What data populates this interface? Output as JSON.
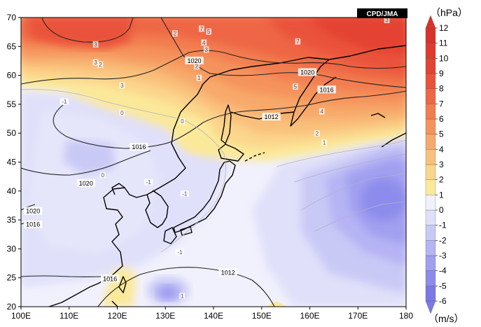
{
  "credit": "CPD/JMA",
  "map": {
    "lon_range": [
      100,
      180
    ],
    "lat_range": [
      20,
      70
    ],
    "x_ticks": [
      "100E",
      "110E",
      "120E",
      "130E",
      "140E",
      "150E",
      "160E",
      "170E",
      "180"
    ],
    "y_ticks": [
      "20",
      "25",
      "30",
      "35",
      "40",
      "45",
      "50",
      "55",
      "60",
      "65",
      "70"
    ]
  },
  "colorbar": {
    "levels": [
      "-6",
      "-5",
      "-4",
      "-3",
      "-2",
      "-1",
      "0",
      "1",
      "2",
      "3",
      "4",
      "5",
      "6",
      "7",
      "8",
      "9",
      "10",
      "11",
      "12"
    ],
    "colors": [
      "#7a79e6",
      "#8d8cec",
      "#a09ff0",
      "#b5b4f4",
      "#c9c9f6",
      "#e0e0fa",
      "#f1f1fd",
      "#fbe99a",
      "#fbd58c",
      "#f9c07b",
      "#f7a96b",
      "#f5935c",
      "#f27d4f",
      "#ee6644",
      "#ea523b",
      "#e44233",
      "#df3a2d",
      "#da3229"
    ],
    "unit_top": "（hPa）",
    "unit_bottom": "（m/s）"
  },
  "isobars": [
    {
      "label": "1020",
      "lon": 136,
      "lat": 62.5
    },
    {
      "label": "1020",
      "lon": 159.5,
      "lat": 60.5
    },
    {
      "label": "1016",
      "lon": 163.5,
      "lat": 57.5
    },
    {
      "label": "1012",
      "lon": 152,
      "lat": 52.8
    },
    {
      "label": "1016",
      "lon": 124.5,
      "lat": 47.6
    },
    {
      "label": "1020",
      "lon": 113.5,
      "lat": 41.3
    },
    {
      "label": "1020",
      "lon": 102.5,
      "lat": 36.5
    },
    {
      "label": "1016",
      "lon": 102.5,
      "lat": 34.2
    },
    {
      "label": "1012",
      "lon": 143,
      "lat": 25.9
    },
    {
      "label": "1016",
      "lon": 118.5,
      "lat": 24.8
    }
  ],
  "anomaly_labels": [
    {
      "label": "3",
      "lon": 115.5,
      "lat": 65.3
    },
    {
      "label": "3",
      "lon": 115.5,
      "lat": 62.2
    },
    {
      "label": "2",
      "lon": 116.5,
      "lat": 61.8
    },
    {
      "label": "3",
      "lon": 121,
      "lat": 58.2
    },
    {
      "label": "2",
      "lon": 132,
      "lat": 67.2
    },
    {
      "label": "7",
      "lon": 137.5,
      "lat": 68
    },
    {
      "label": "5",
      "lon": 139,
      "lat": 67.5
    },
    {
      "label": "4",
      "lon": 138,
      "lat": 65.6
    },
    {
      "label": "3",
      "lon": 138.5,
      "lat": 64.4
    },
    {
      "label": "2",
      "lon": 136.5,
      "lat": 61.5
    },
    {
      "label": "1",
      "lon": 137,
      "lat": 59.5
    },
    {
      "label": "-1",
      "lon": 109,
      "lat": 55.4
    },
    {
      "label": "0",
      "lon": 121,
      "lat": 53.5
    },
    {
      "label": "0",
      "lon": 133.5,
      "lat": 52
    },
    {
      "label": "7",
      "lon": 157.5,
      "lat": 65.8
    },
    {
      "label": "5",
      "lon": 157,
      "lat": 58
    },
    {
      "label": "4",
      "lon": 162.5,
      "lat": 53.7
    },
    {
      "label": "2",
      "lon": 161.5,
      "lat": 49.9
    },
    {
      "label": "1",
      "lon": 163,
      "lat": 48.3
    },
    {
      "label": "-1",
      "lon": 126.5,
      "lat": 41.5
    },
    {
      "label": "-1",
      "lon": 134,
      "lat": 39.5
    },
    {
      "label": "-1",
      "lon": 133,
      "lat": 29.4
    },
    {
      "label": "1",
      "lon": 133.5,
      "lat": 21.8
    },
    {
      "label": "0",
      "lon": 117,
      "lat": 42.7
    },
    {
      "label": "3",
      "lon": 176,
      "lat": 69.5
    }
  ]
}
